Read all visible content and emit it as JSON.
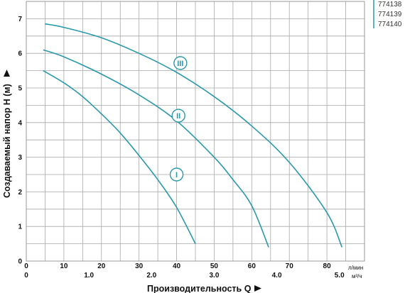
{
  "chart_data": {
    "type": "line",
    "title": "",
    "xlabel": "Производительность Q",
    "ylabel": "Создаваемый напор H (м)",
    "x_unit_primary": "л/мин",
    "x_unit_secondary": "м³/ч",
    "xlim": [
      0,
      90
    ],
    "ylim": [
      0,
      7.5
    ],
    "x_ticks": [
      0,
      10,
      20,
      30,
      40,
      50,
      60,
      70,
      80
    ],
    "x2_ticks": [
      {
        "value": 1.0,
        "label": "1.0"
      },
      {
        "value": 2.0,
        "label": "2.0"
      },
      {
        "value": 3.0,
        "label": "3.0"
      },
      {
        "value": 4.0,
        "label": "4.0"
      },
      {
        "value": 5.0,
        "label": "5.0"
      }
    ],
    "y_ticks": [
      0,
      1,
      2,
      3,
      4,
      5,
      6,
      7
    ],
    "grid": true,
    "series": [
      {
        "name": "I",
        "color": "#2a9aaa",
        "x": [
          4.5,
          10,
          15,
          20,
          25,
          30,
          35,
          40,
          45
        ],
        "y": [
          5.5,
          5.15,
          4.75,
          4.25,
          3.7,
          3.05,
          2.35,
          1.55,
          0.5
        ],
        "label_at": {
          "x": 40,
          "y": 2.5
        }
      },
      {
        "name": "II",
        "color": "#2a9aaa",
        "x": [
          4.5,
          10,
          20,
          30,
          40,
          50,
          55,
          60,
          64.5
        ],
        "y": [
          6.1,
          5.9,
          5.4,
          4.8,
          4.05,
          3.0,
          2.35,
          1.6,
          0.4
        ],
        "label_at": {
          "x": 40.5,
          "y": 4.2
        }
      },
      {
        "name": "III",
        "color": "#2a9aaa",
        "x": [
          5,
          10,
          20,
          30,
          40,
          50,
          60,
          70,
          80,
          84
        ],
        "y": [
          6.85,
          6.75,
          6.45,
          6.0,
          5.45,
          4.75,
          3.9,
          2.85,
          1.4,
          0.4
        ],
        "label_at": {
          "x": 41,
          "y": 5.72
        }
      }
    ],
    "legend": {
      "placement": "top-right",
      "codes": [
        "774138",
        "774139",
        "774140"
      ]
    }
  }
}
